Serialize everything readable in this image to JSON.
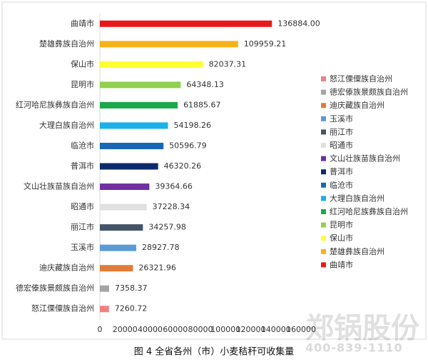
{
  "chart_data": {
    "type": "bar",
    "orientation": "horizontal",
    "categories": [
      "曲靖市",
      "楚雄彝族自治州",
      "保山市",
      "昆明市",
      "红河哈尼族彝族自治州",
      "大理白族自治州",
      "临沧市",
      "普洱市",
      "文山壮族苗族自治州",
      "昭通市",
      "丽江市",
      "玉溪市",
      "迪庆藏族自治州",
      "德宏傣族景颇族自治州",
      "怒江傈僳族自治州"
    ],
    "values": [
      136884.0,
      109959.21,
      82037.31,
      64348.13,
      61885.67,
      54198.26,
      50596.79,
      46320.26,
      39364.66,
      37228.34,
      34257.98,
      28927.78,
      26321.96,
      7358.37,
      7260.72
    ],
    "value_labels": [
      "136884.00",
      "109959.21",
      "82037.31",
      "64348.13",
      "61885.67",
      "54198.26",
      "50596.79",
      "46320.26",
      "39364.66",
      "37228.34",
      "34257.98",
      "28927.78",
      "26321.96",
      "7358.37",
      "7260.72"
    ],
    "colors": [
      "#e8191b",
      "#f5b21a",
      "#ffff33",
      "#92d050",
      "#1aa84a",
      "#1ab0e8",
      "#1767b5",
      "#0a2a6b",
      "#7030a0",
      "#e0e0e0",
      "#44546a",
      "#5b9bd5",
      "#e07b39",
      "#a5a5a5",
      "#f08080"
    ],
    "xlim": [
      0,
      160000
    ],
    "xticks": [
      0,
      20000,
      40000,
      60000,
      80000,
      100000,
      120000,
      140000,
      160000
    ],
    "legend": "right",
    "legend_order": "reversed",
    "caption": "图 4 全省各州（市）小麦秸秆可收集量"
  },
  "watermark": {
    "name": "郑锅股份",
    "phone": "400-839-1110"
  }
}
